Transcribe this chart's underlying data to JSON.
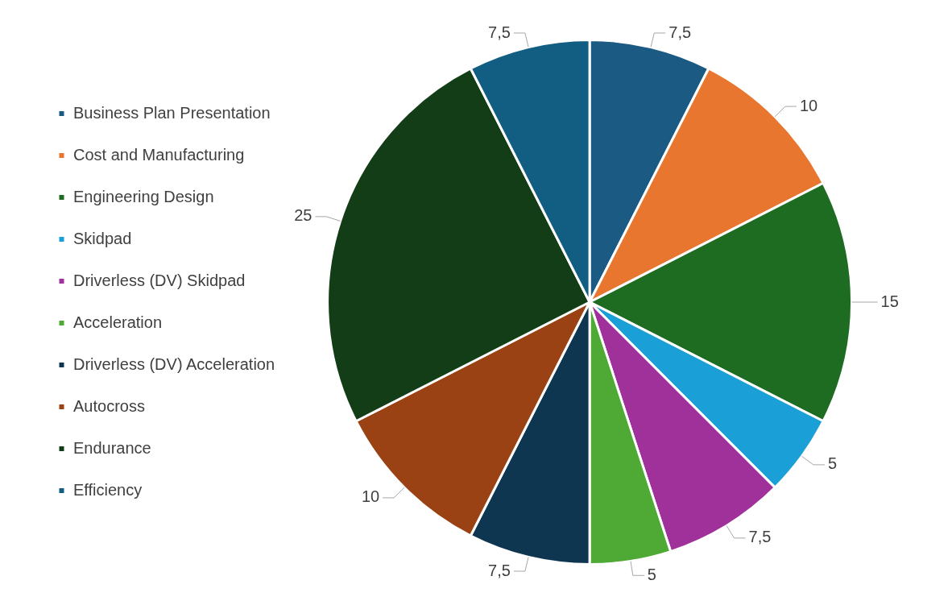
{
  "chart_data": {
    "type": "pie",
    "categories": [
      "Business Plan Presentation",
      "Cost and Manufacturing",
      "Engineering Design",
      "Skidpad",
      "Driverless (DV) Skidpad",
      "Acceleration",
      "Driverless (DV) Acceleration",
      "Autocross",
      "Endurance",
      "Efficiency"
    ],
    "values": [
      7.5,
      10,
      15,
      5,
      7.5,
      5,
      7.5,
      10,
      25,
      7.5
    ],
    "value_labels": [
      "7,5",
      "10",
      "15",
      "5",
      "7,5",
      "5",
      "7,5",
      "10",
      "25",
      "7,5"
    ],
    "colors": [
      "#1b5a82",
      "#e8762f",
      "#1e6b22",
      "#1a9fd6",
      "#a0309a",
      "#4ea935",
      "#0f3651",
      "#9a4213",
      "#133d16",
      "#125d82"
    ],
    "legend": "left"
  }
}
